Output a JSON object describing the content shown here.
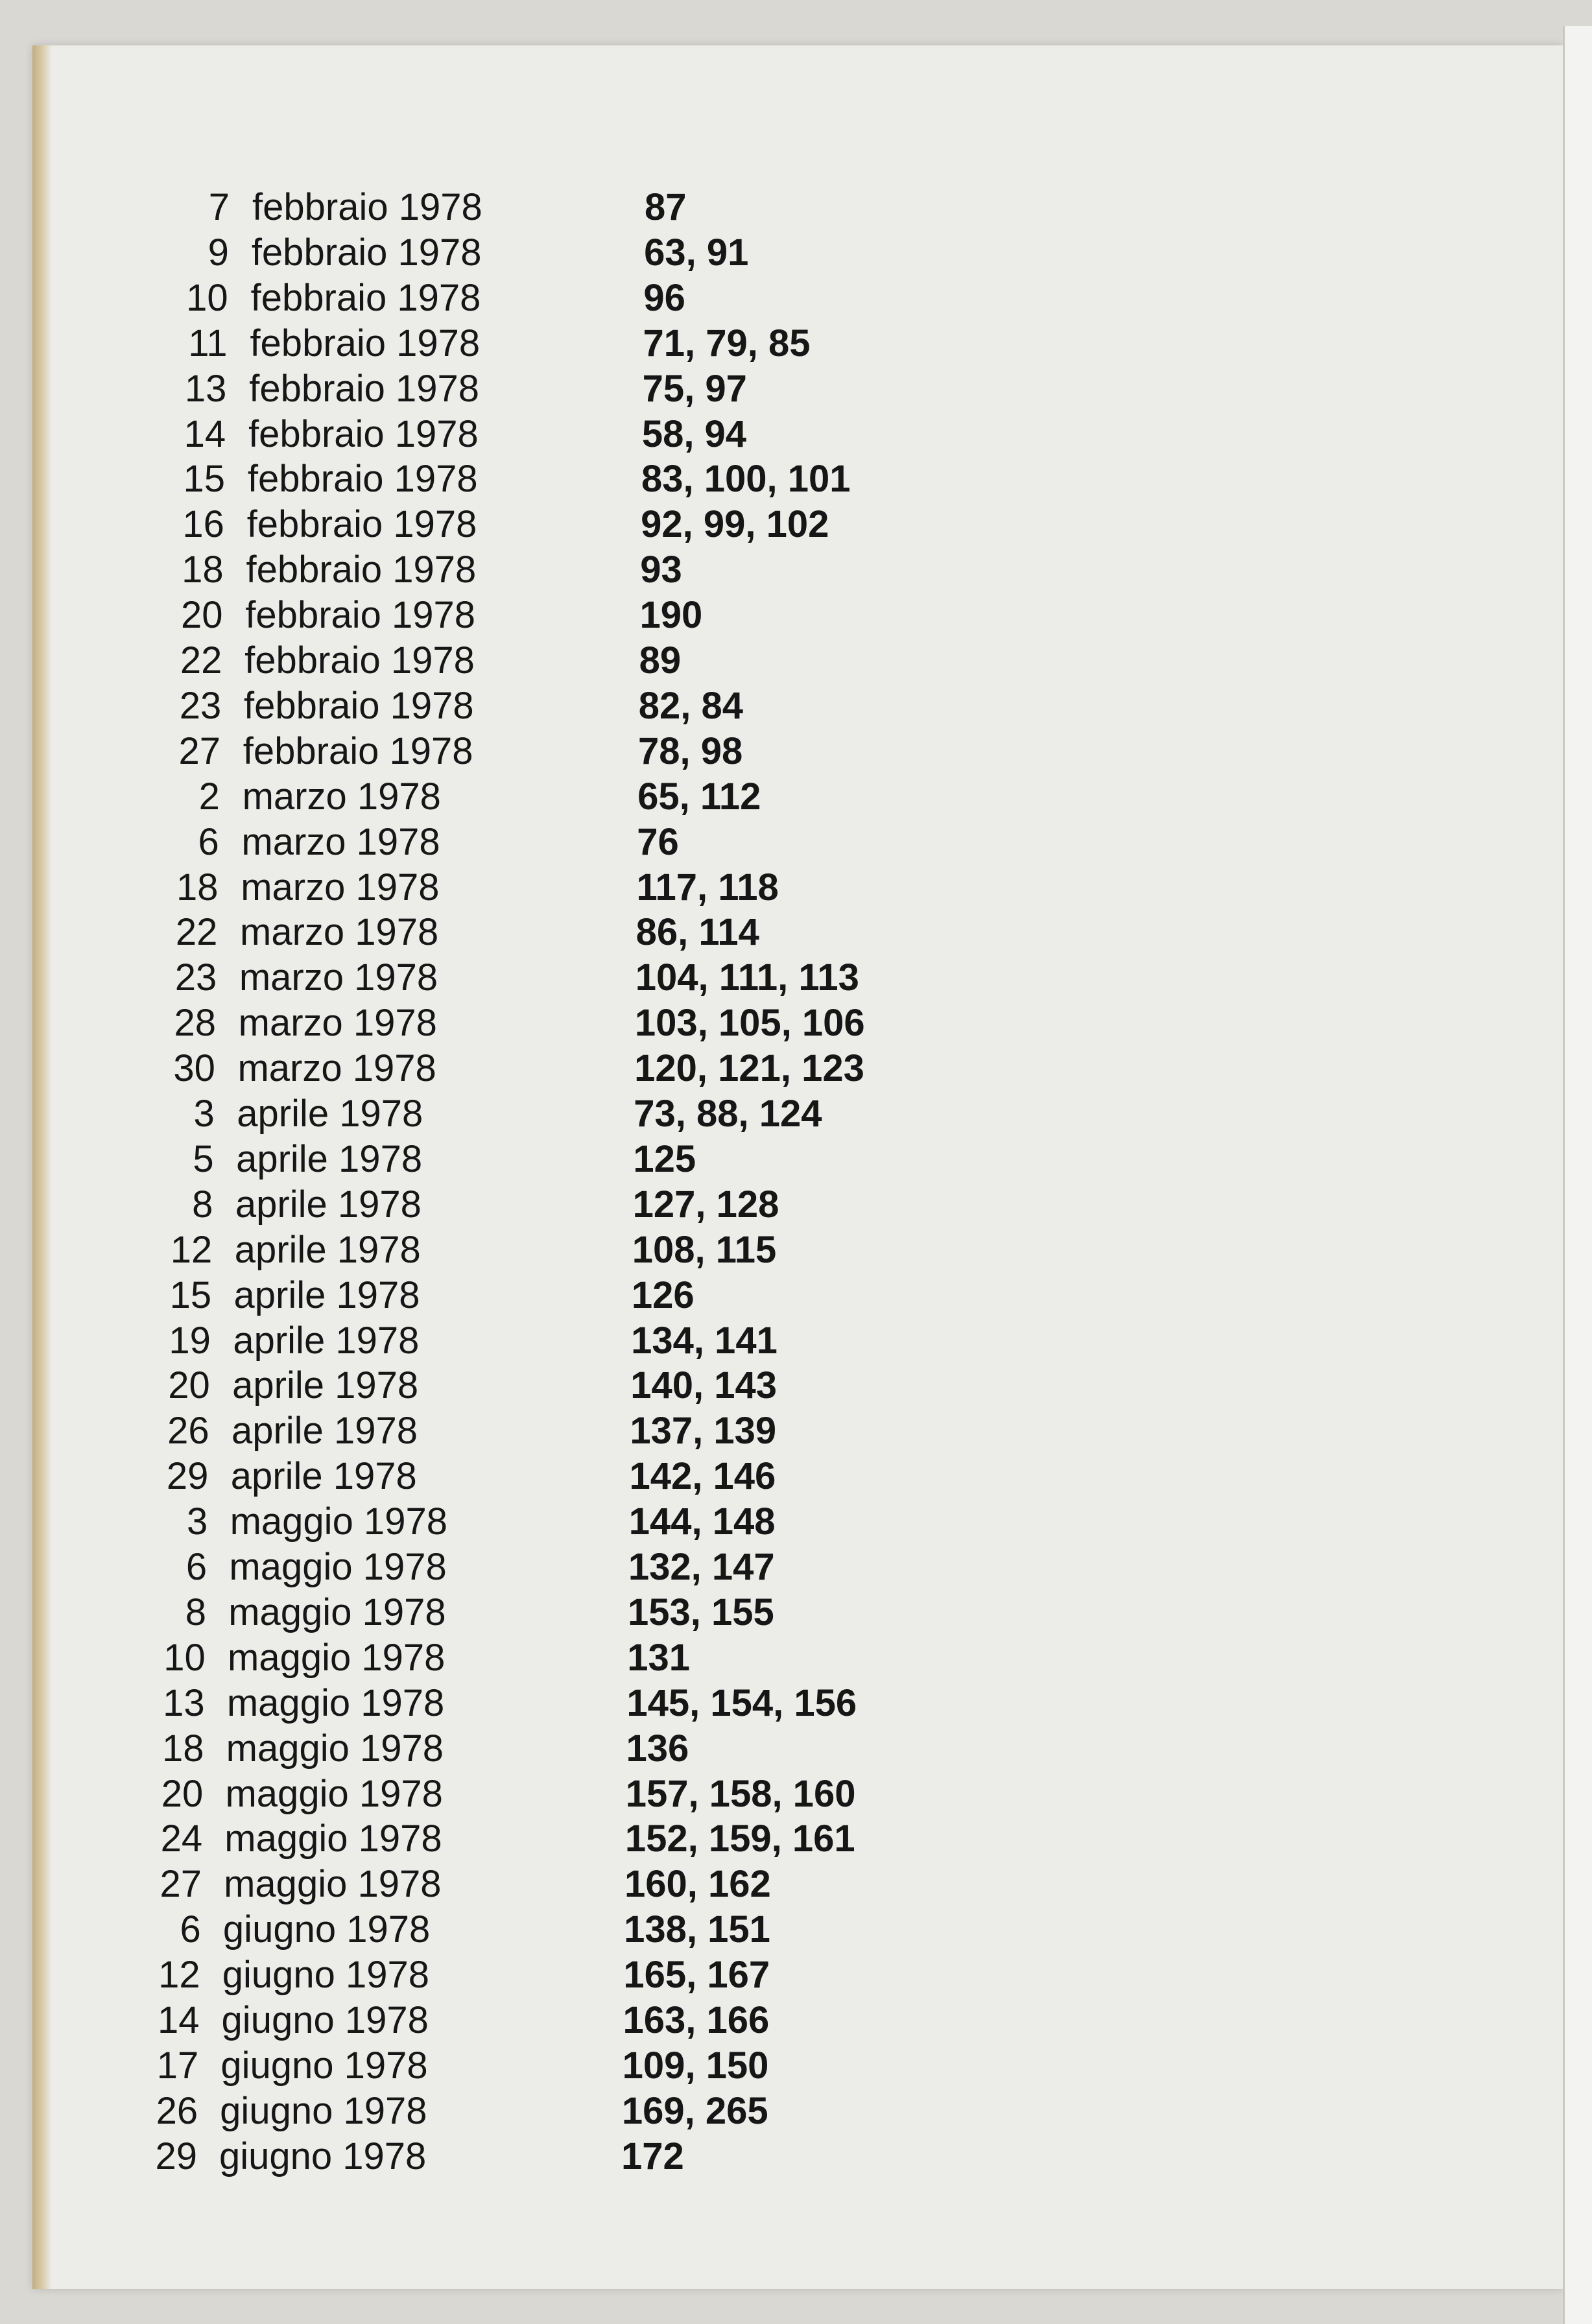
{
  "entries": [
    {
      "day": "7",
      "month": "febbraio 1978",
      "pages": "87"
    },
    {
      "day": "9",
      "month": "febbraio 1978",
      "pages": "63, 91"
    },
    {
      "day": "10",
      "month": "febbraio 1978",
      "pages": "96"
    },
    {
      "day": "11",
      "month": "febbraio 1978",
      "pages": "71, 79, 85"
    },
    {
      "day": "13",
      "month": "febbraio 1978",
      "pages": "75, 97"
    },
    {
      "day": "14",
      "month": "febbraio 1978",
      "pages": "58, 94"
    },
    {
      "day": "15",
      "month": "febbraio 1978",
      "pages": "83, 100, 101"
    },
    {
      "day": "16",
      "month": "febbraio 1978",
      "pages": "92, 99, 102"
    },
    {
      "day": "18",
      "month": "febbraio 1978",
      "pages": "93"
    },
    {
      "day": "20",
      "month": "febbraio 1978",
      "pages": "190"
    },
    {
      "day": "22",
      "month": "febbraio 1978",
      "pages": "89"
    },
    {
      "day": "23",
      "month": "febbraio 1978",
      "pages": "82, 84"
    },
    {
      "day": "27",
      "month": "febbraio 1978",
      "pages": "78, 98"
    },
    {
      "day": "2",
      "month": "marzo 1978",
      "pages": "65, 112"
    },
    {
      "day": "6",
      "month": "marzo 1978",
      "pages": "76"
    },
    {
      "day": "18",
      "month": "marzo 1978",
      "pages": "117, 118"
    },
    {
      "day": "22",
      "month": "marzo 1978",
      "pages": "86, 114"
    },
    {
      "day": "23",
      "month": "marzo 1978",
      "pages": "104, 111, 113"
    },
    {
      "day": "28",
      "month": "marzo 1978",
      "pages": "103, 105, 106"
    },
    {
      "day": "30",
      "month": "marzo 1978",
      "pages": "120, 121, 123"
    },
    {
      "day": "3",
      "month": "aprile 1978",
      "pages": "73, 88, 124"
    },
    {
      "day": "5",
      "month": "aprile 1978",
      "pages": "125"
    },
    {
      "day": "8",
      "month": "aprile 1978",
      "pages": "127, 128"
    },
    {
      "day": "12",
      "month": "aprile 1978",
      "pages": "108, 115"
    },
    {
      "day": "15",
      "month": "aprile 1978",
      "pages": "126"
    },
    {
      "day": "19",
      "month": "aprile 1978",
      "pages": "134, 141"
    },
    {
      "day": "20",
      "month": "aprile 1978",
      "pages": "140, 143"
    },
    {
      "day": "26",
      "month": "aprile 1978",
      "pages": "137, 139"
    },
    {
      "day": "29",
      "month": "aprile 1978",
      "pages": "142, 146"
    },
    {
      "day": "3",
      "month": "maggio 1978",
      "pages": "144, 148"
    },
    {
      "day": "6",
      "month": "maggio 1978",
      "pages": "132, 147"
    },
    {
      "day": "8",
      "month": "maggio 1978",
      "pages": "153, 155"
    },
    {
      "day": "10",
      "month": "maggio 1978",
      "pages": "131"
    },
    {
      "day": "13",
      "month": "maggio 1978",
      "pages": "145, 154, 156"
    },
    {
      "day": "18",
      "month": "maggio 1978",
      "pages": "136"
    },
    {
      "day": "20",
      "month": "maggio 1978",
      "pages": "157, 158, 160"
    },
    {
      "day": "24",
      "month": "maggio 1978",
      "pages": "152, 159, 161"
    },
    {
      "day": "27",
      "month": "maggio 1978",
      "pages": "160, 162"
    },
    {
      "day": "6",
      "month": "giugno 1978",
      "pages": "138, 151"
    },
    {
      "day": "12",
      "month": "giugno 1978",
      "pages": "165, 167"
    },
    {
      "day": "14",
      "month": "giugno 1978",
      "pages": "163, 166"
    },
    {
      "day": "17",
      "month": "giugno 1978",
      "pages": "109, 150"
    },
    {
      "day": "26",
      "month": "giugno 1978",
      "pages": "169, 265"
    },
    {
      "day": "29",
      "month": "giugno 1978",
      "pages": "172"
    }
  ]
}
